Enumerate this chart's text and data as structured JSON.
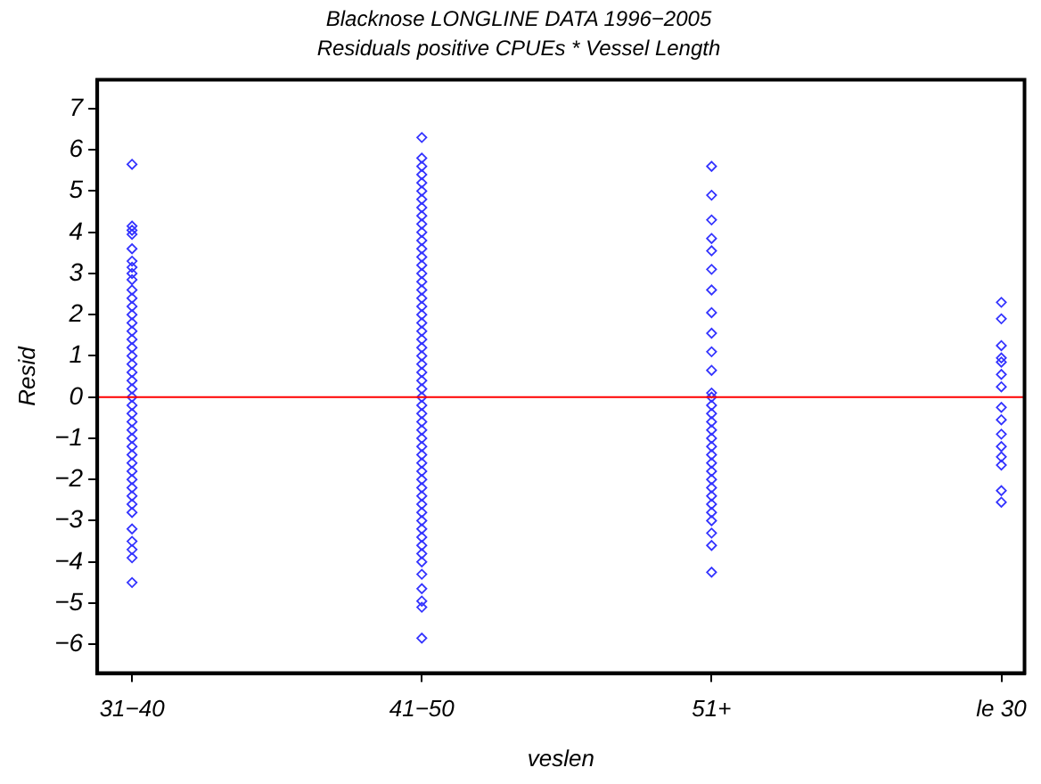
{
  "chart_data": {
    "type": "scatter",
    "title": "Blacknose LONGLINE DATA 1996−2005",
    "subtitle": "Residuals positive CPUEs * Vessel Length",
    "xlabel": "veslen",
    "ylabel": "Resid",
    "categories": [
      "31−40",
      "41−50",
      "51+",
      "le 30"
    ],
    "ylim": [
      -6.7,
      7.7
    ],
    "yticks": [
      -6,
      -5,
      -4,
      -3,
      -2,
      -1,
      0,
      1,
      2,
      3,
      4,
      5,
      6,
      7
    ],
    "grid": false,
    "legend": false,
    "marker": "diamond",
    "ref_lines": [
      {
        "axis": "y",
        "value": 0,
        "color": "#ff0000"
      }
    ],
    "series": [
      {
        "color": "#3333ff",
        "x": [
          "31−40",
          "31−40",
          "31−40",
          "31−40",
          "31−40",
          "31−40",
          "31−40",
          "31−40",
          "31−40",
          "31−40",
          "31−40",
          "31−40",
          "31−40",
          "31−40",
          "31−40",
          "31−40",
          "31−40",
          "31−40",
          "31−40",
          "31−40",
          "31−40",
          "31−40",
          "31−40",
          "31−40",
          "31−40",
          "31−40",
          "31−40",
          "31−40",
          "31−40",
          "31−40",
          "31−40",
          "31−40",
          "31−40",
          "31−40",
          "31−40",
          "31−40",
          "31−40",
          "31−40",
          "31−40",
          "31−40",
          "31−40",
          "31−40"
        ],
        "values": [
          5.65,
          4.15,
          4.05,
          3.95,
          3.6,
          3.3,
          3.15,
          3.0,
          2.85,
          2.6,
          2.4,
          2.2,
          2.0,
          1.8,
          1.6,
          1.4,
          1.2,
          1.0,
          0.8,
          0.6,
          0.4,
          0.2,
          0,
          -0.2,
          -0.4,
          -0.6,
          -0.8,
          -1.0,
          -1.2,
          -1.4,
          -1.6,
          -1.8,
          -2.0,
          -2.2,
          -2.4,
          -2.6,
          -2.8,
          -3.2,
          -3.5,
          -3.7,
          -3.9,
          -4.5
        ]
      },
      {
        "color": "#3333ff",
        "x": [
          "41−50",
          "41−50",
          "41−50",
          "41−50",
          "41−50",
          "41−50",
          "41−50",
          "41−50",
          "41−50",
          "41−50",
          "41−50",
          "41−50",
          "41−50",
          "41−50",
          "41−50",
          "41−50",
          "41−50",
          "41−50",
          "41−50",
          "41−50",
          "41−50",
          "41−50",
          "41−50",
          "41−50",
          "41−50",
          "41−50",
          "41−50",
          "41−50",
          "41−50",
          "41−50",
          "41−50",
          "41−50",
          "41−50",
          "41−50",
          "41−50",
          "41−50",
          "41−50",
          "41−50",
          "41−50",
          "41−50",
          "41−50",
          "41−50",
          "41−50",
          "41−50",
          "41−50",
          "41−50",
          "41−50",
          "41−50",
          "41−50",
          "41−50",
          "41−50",
          "41−50",
          "41−50",
          "41−50",
          "41−50",
          "41−50"
        ],
        "values": [
          6.3,
          5.8,
          5.6,
          5.4,
          5.2,
          5.0,
          4.8,
          4.6,
          4.4,
          4.2,
          4.0,
          3.8,
          3.6,
          3.4,
          3.2,
          3.0,
          2.8,
          2.6,
          2.4,
          2.2,
          2.0,
          1.8,
          1.6,
          1.4,
          1.2,
          1.0,
          0.8,
          0.6,
          0.4,
          0.2,
          0,
          -0.2,
          -0.4,
          -0.6,
          -0.8,
          -1.0,
          -1.2,
          -1.4,
          -1.6,
          -1.8,
          -2.0,
          -2.2,
          -2.4,
          -2.6,
          -2.8,
          -3.0,
          -3.2,
          -3.4,
          -3.6,
          -3.8,
          -4.0,
          -4.3,
          -4.65,
          -4.95,
          -5.1,
          -5.85
        ]
      },
      {
        "color": "#3333ff",
        "x": [
          "51+",
          "51+",
          "51+",
          "51+",
          "51+",
          "51+",
          "51+",
          "51+",
          "51+",
          "51+",
          "51+",
          "51+",
          "51+",
          "51+",
          "51+",
          "51+",
          "51+",
          "51+",
          "51+",
          "51+",
          "51+",
          "51+",
          "51+",
          "51+",
          "51+",
          "51+",
          "51+",
          "51+",
          "51+",
          "51+",
          "51+"
        ],
        "values": [
          5.6,
          4.9,
          4.3,
          3.85,
          3.55,
          3.1,
          2.6,
          2.05,
          1.55,
          1.1,
          0.65,
          0.1,
          0,
          -0.2,
          -0.4,
          -0.6,
          -0.8,
          -1.0,
          -1.2,
          -1.4,
          -1.6,
          -1.8,
          -2.0,
          -2.2,
          -2.4,
          -2.6,
          -2.8,
          -3.0,
          -3.3,
          -3.6,
          -4.25
        ]
      },
      {
        "color": "#3333ff",
        "x": [
          "le 30",
          "le 30",
          "le 30",
          "le 30",
          "le 30",
          "le 30",
          "le 30",
          "le 30",
          "le 30",
          "le 30",
          "le 30",
          "le 30",
          "le 30",
          "le 30",
          "le 30"
        ],
        "values": [
          2.3,
          1.9,
          1.25,
          0.95,
          0.85,
          0.55,
          0.25,
          -0.25,
          -0.55,
          -0.9,
          -1.2,
          -1.45,
          -1.65,
          -2.27,
          -2.55
        ]
      }
    ]
  }
}
